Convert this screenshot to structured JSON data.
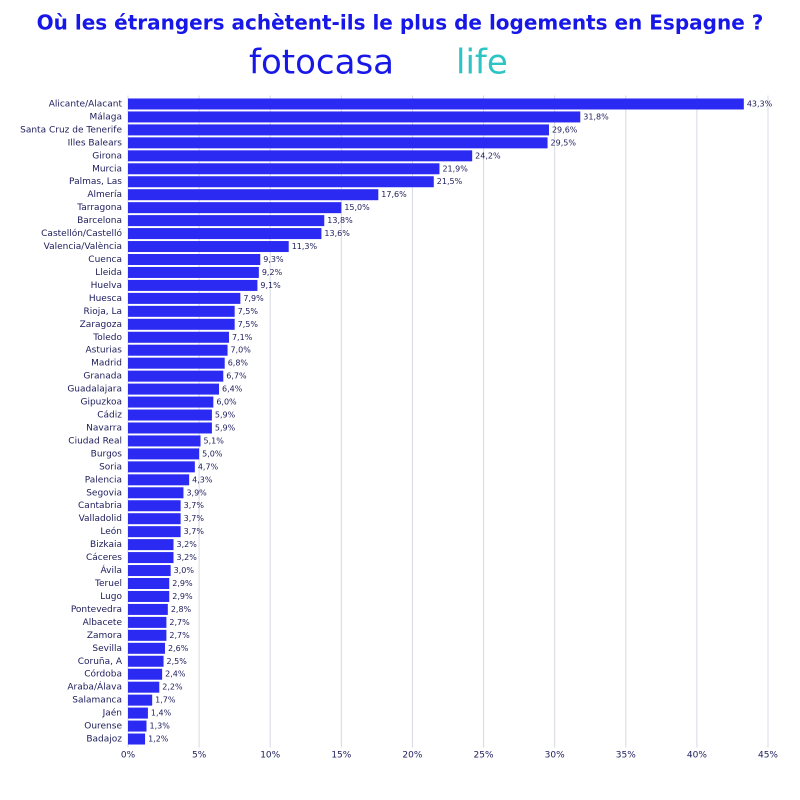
{
  "chart_data": {
    "type": "barh",
    "title": "Où les étrangers achètent-ils le plus de logements en Espagne ?",
    "logo": {
      "name": "fotocasa",
      "suffix": "life"
    },
    "color": "#2a2af2",
    "grid": true,
    "categories": [
      "Alicante/Alacant",
      "Málaga",
      "Santa Cruz de Tenerife",
      "Illes Balears",
      "Girona",
      "Murcia",
      "Palmas, Las",
      "Almería",
      "Tarragona",
      "Barcelona",
      "Castellón/Castelló",
      "Valencia/València",
      "Cuenca",
      "Lleida",
      "Huelva",
      "Huesca",
      "Rioja, La",
      "Zaragoza",
      "Toledo",
      "Asturias",
      "Madrid",
      "Granada",
      "Guadalajara",
      "Gipuzkoa",
      "Cádiz",
      "Navarra",
      "Ciudad Real",
      "Burgos",
      "Soria",
      "Palencia",
      "Segovia",
      "Cantabria",
      "Valladolid",
      "León",
      "Bizkaia",
      "Cáceres",
      "Ávila",
      "Teruel",
      "Lugo",
      "Pontevedra",
      "Albacete",
      "Zamora",
      "Sevilla",
      "Coruña, A",
      "Córdoba",
      "Araba/Álava",
      "Salamanca",
      "Jaén",
      "Ourense",
      "Badajoz"
    ],
    "values": [
      43.3,
      31.8,
      29.6,
      29.5,
      24.2,
      21.9,
      21.5,
      17.6,
      15.0,
      13.8,
      13.6,
      11.3,
      9.3,
      9.2,
      9.1,
      7.9,
      7.5,
      7.5,
      7.1,
      7.0,
      6.8,
      6.7,
      6.4,
      6.0,
      5.9,
      5.9,
      5.1,
      5.0,
      4.7,
      4.3,
      3.9,
      3.7,
      3.7,
      3.7,
      3.2,
      3.2,
      3.0,
      2.9,
      2.9,
      2.8,
      2.7,
      2.7,
      2.6,
      2.5,
      2.4,
      2.2,
      1.7,
      1.4,
      1.3,
      1.2
    ],
    "value_labels": [
      "43,3%",
      "31,8%",
      "29,6%",
      "29,5%",
      "24,2%",
      "21,9%",
      "21,5%",
      "17,6%",
      "15,0%",
      "13,8%",
      "13,6%",
      "11,3%",
      "9,3%",
      "9,2%",
      "9,1%",
      "7,9%",
      "7,5%",
      "7,5%",
      "7,1%",
      "7,0%",
      "6,8%",
      "6,7%",
      "6,4%",
      "6,0%",
      "5,9%",
      "5,9%",
      "5,1%",
      "5,0%",
      "4,7%",
      "4,3%",
      "3,9%",
      "3,7%",
      "3,7%",
      "3,7%",
      "3,2%",
      "3,2%",
      "3,0%",
      "2,9%",
      "2,9%",
      "2,8%",
      "2,7%",
      "2,7%",
      "2,6%",
      "2,5%",
      "2,4%",
      "2,2%",
      "1,7%",
      "1,4%",
      "1,3%",
      "1,2%"
    ],
    "xlim": [
      0,
      45
    ],
    "xticks": [
      {
        "value": 0,
        "label": "0%"
      },
      {
        "value": 5,
        "label": "5%"
      },
      {
        "value": 10,
        "label": "10%"
      },
      {
        "value": 15,
        "label": "15%"
      },
      {
        "value": 20,
        "label": "20%"
      },
      {
        "value": 25,
        "label": "25%"
      },
      {
        "value": 30,
        "label": "30%"
      },
      {
        "value": 35,
        "label": "35%"
      },
      {
        "value": 40,
        "label": "40%"
      },
      {
        "value": 45,
        "label": "45%"
      }
    ]
  }
}
